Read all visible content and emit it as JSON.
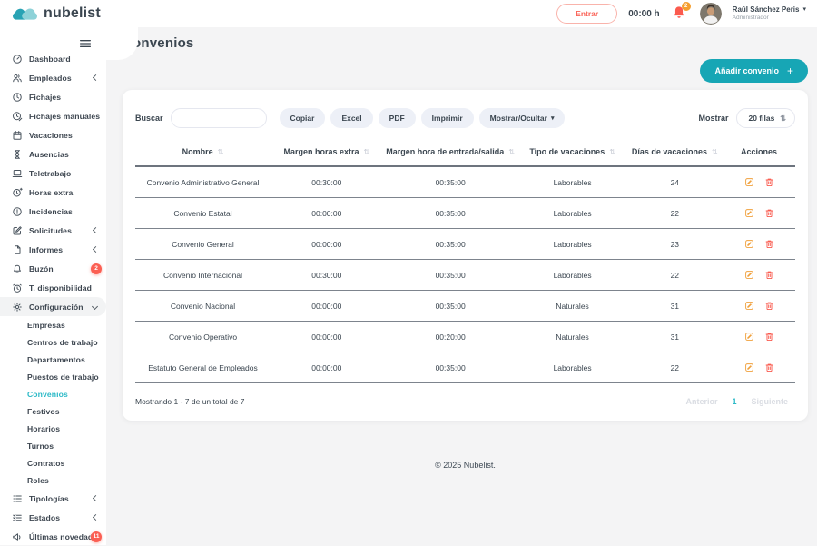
{
  "brand": {
    "name": "nubelist"
  },
  "header": {
    "entrar_label": "Entrar",
    "time": "00:00 h",
    "bell_badge": "2",
    "user": {
      "name": "Raúl Sánchez Peris",
      "role": "Administrador"
    }
  },
  "colors": {
    "teal": "#17a6b5",
    "teal_light": "#8ed2d8",
    "active_link": "#2bb9c7",
    "coral": "#fb5a4e",
    "orange_badge": "#f59e2e",
    "edit_orange": "#f0a03c"
  },
  "sidebar": {
    "items": [
      {
        "label": "Dashboard",
        "icon": "gauge-icon"
      },
      {
        "label": "Empleados",
        "icon": "users-icon",
        "chevron": "left"
      },
      {
        "label": "Fichajes",
        "icon": "clock-icon"
      },
      {
        "label": "Fichajes manuales",
        "icon": "clock-edit-icon"
      },
      {
        "label": "Vacaciones",
        "icon": "calendar-icon"
      },
      {
        "label": "Ausencias",
        "icon": "hourglass-icon"
      },
      {
        "label": "Teletrabajo",
        "icon": "laptop-icon"
      },
      {
        "label": "Horas extra",
        "icon": "clock-plus-icon"
      },
      {
        "label": "Incidencias",
        "icon": "alert-circle-icon"
      },
      {
        "label": "Solicitudes",
        "icon": "edit-doc-icon",
        "chevron": "left"
      },
      {
        "label": "Informes",
        "icon": "file-icon",
        "chevron": "left"
      },
      {
        "label": "Buzón",
        "icon": "bell-icon",
        "badge": "2"
      },
      {
        "label": "T. disponibilidad",
        "icon": "alarm-icon"
      },
      {
        "label": "Configuración",
        "icon": "gear-icon",
        "chevron": "down",
        "highlight": true
      },
      {
        "label": "Empresas",
        "sub": true
      },
      {
        "label": "Centros de trabajo",
        "sub": true
      },
      {
        "label": "Departamentos",
        "sub": true
      },
      {
        "label": "Puestos de trabajo",
        "sub": true
      },
      {
        "label": "Convenios",
        "sub": true,
        "active": true
      },
      {
        "label": "Festivos",
        "sub": true
      },
      {
        "label": "Horarios",
        "sub": true
      },
      {
        "label": "Turnos",
        "sub": true
      },
      {
        "label": "Contratos",
        "sub": true
      },
      {
        "label": "Roles",
        "sub": true
      },
      {
        "label": "Tipologías",
        "icon": "list-icon",
        "chevron": "left"
      },
      {
        "label": "Estados",
        "icon": "checklist-icon",
        "chevron": "left"
      },
      {
        "label": "Últimas novedades",
        "icon": "megaphone-icon",
        "badge": "11"
      }
    ]
  },
  "page": {
    "title": "Convenios",
    "add_button": "Añadir convenio",
    "copyright": "© 2025 Nubelist."
  },
  "toolbar": {
    "search_label": "Buscar",
    "search_value": "",
    "buttons": [
      {
        "label": "Copiar"
      },
      {
        "label": "Excel"
      },
      {
        "label": "PDF"
      },
      {
        "label": "Imprimir"
      },
      {
        "label": "Mostrar/Ocultar",
        "caret": true
      }
    ],
    "show_label": "Mostrar",
    "page_size": "20 filas"
  },
  "table": {
    "columns": [
      {
        "label": "Nombre",
        "sortable": true
      },
      {
        "label": "Margen horas extra",
        "sortable": true
      },
      {
        "label": "Margen hora de entrada/salida",
        "sortable": true
      },
      {
        "label": "Tipo de vacaciones",
        "sortable": true
      },
      {
        "label": "Días de vacaciones",
        "sortable": true
      },
      {
        "label": "Acciones",
        "sortable": false
      }
    ],
    "rows": [
      {
        "nombre": "Convenio Administrativo General",
        "margen_extra": "00:30:00",
        "margen_entrada": "00:35:00",
        "tipo": "Laborables",
        "dias": "24"
      },
      {
        "nombre": "Convenio Estatal",
        "margen_extra": "00:00:00",
        "margen_entrada": "00:35:00",
        "tipo": "Laborables",
        "dias": "22"
      },
      {
        "nombre": "Convenio General",
        "margen_extra": "00:00:00",
        "margen_entrada": "00:35:00",
        "tipo": "Laborables",
        "dias": "23"
      },
      {
        "nombre": "Convenio Internacional",
        "margen_extra": "00:30:00",
        "margen_entrada": "00:35:00",
        "tipo": "Laborables",
        "dias": "22"
      },
      {
        "nombre": "Convenio Nacional",
        "margen_extra": "00:00:00",
        "margen_entrada": "00:35:00",
        "tipo": "Naturales",
        "dias": "31"
      },
      {
        "nombre": "Convenio Operativo",
        "margen_extra": "00:00:00",
        "margen_entrada": "00:20:00",
        "tipo": "Naturales",
        "dias": "31"
      },
      {
        "nombre": "Estatuto General de Empleados",
        "margen_extra": "00:00:00",
        "margen_entrada": "00:35:00",
        "tipo": "Laborables",
        "dias": "22"
      }
    ]
  },
  "pagination": {
    "summary": "Mostrando 1 - 7 de un total de 7",
    "prev": "Anterior",
    "page": "1",
    "next": "Siguiente"
  }
}
